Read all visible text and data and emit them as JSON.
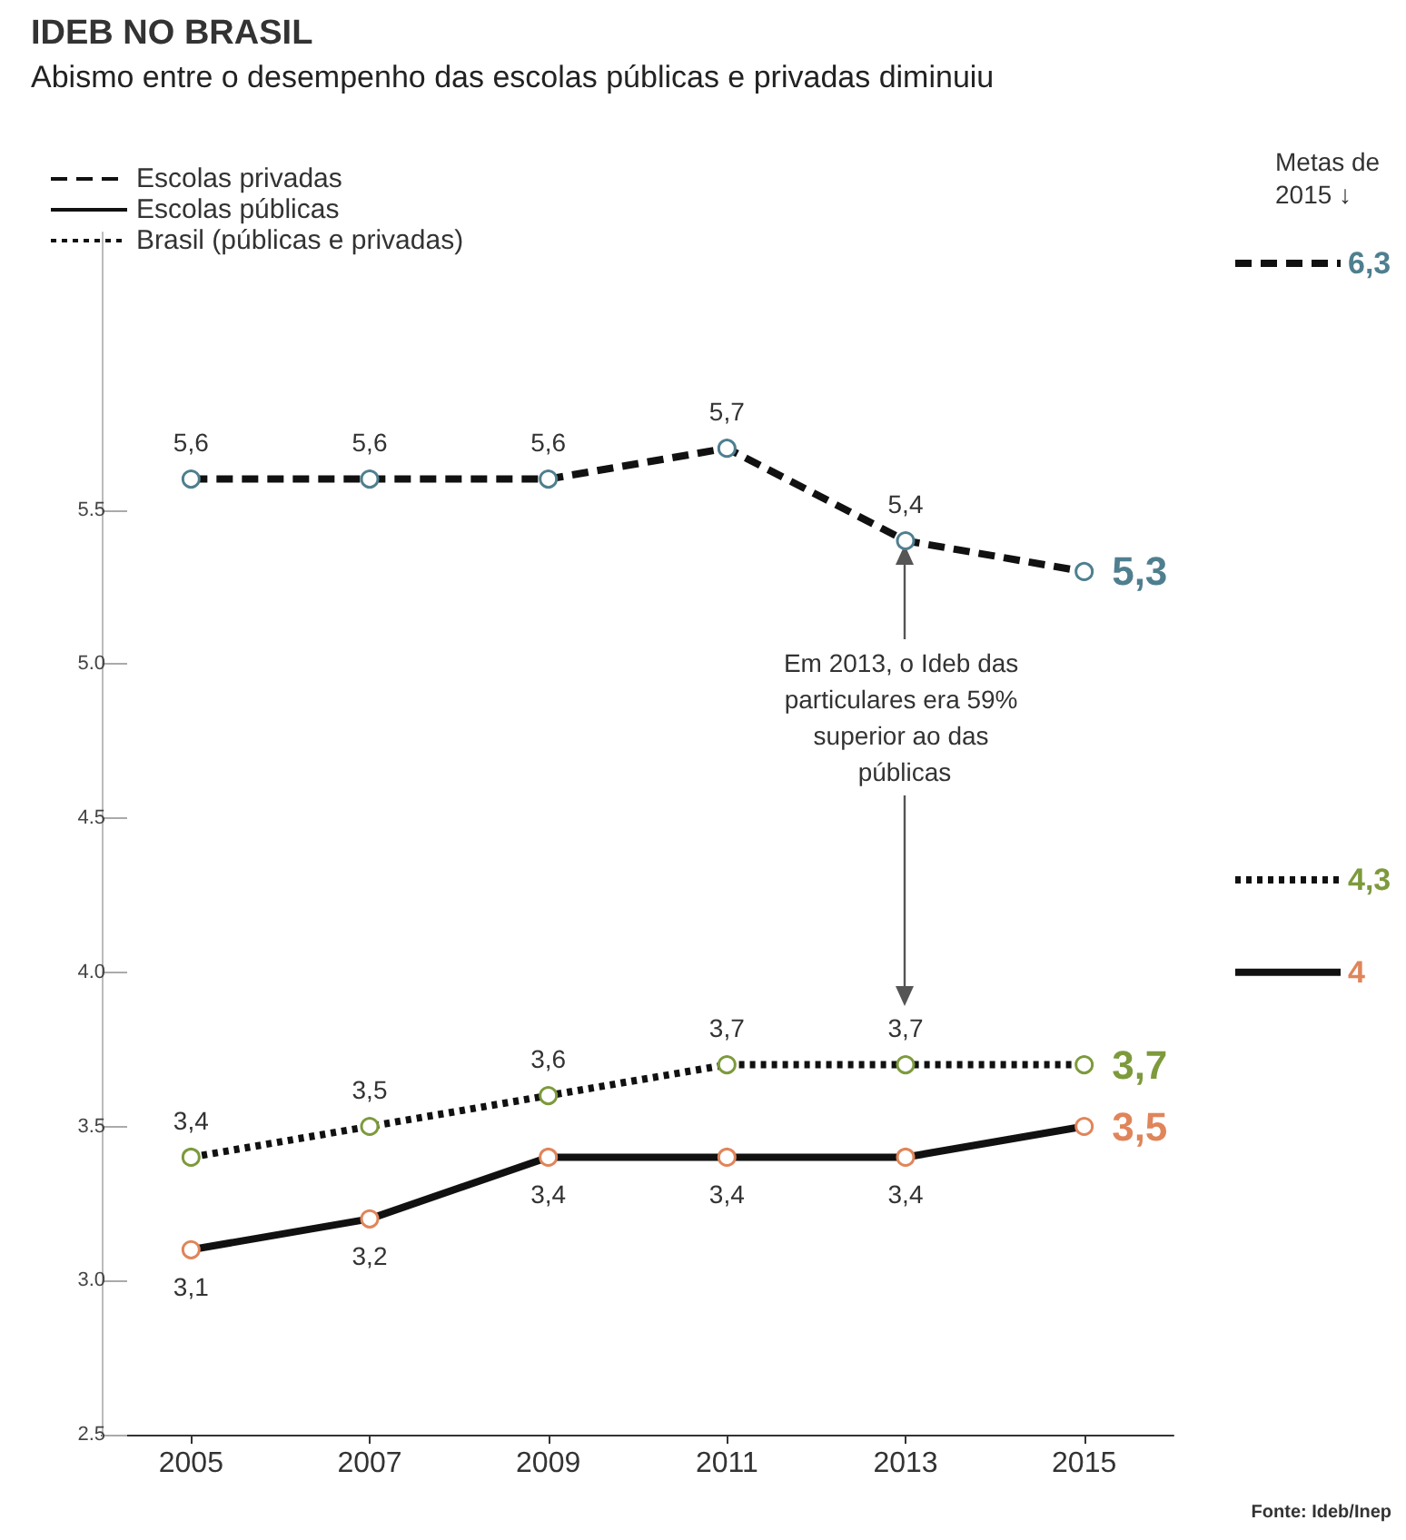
{
  "chart_data": {
    "type": "line",
    "title": "IDEB NO BRASIL",
    "subtitle": "Abismo entre o desempenho das escolas públicas e privadas diminuiu",
    "categories": [
      "2005",
      "2007",
      "2009",
      "2011",
      "2013",
      "2015"
    ],
    "series": [
      {
        "name": "Escolas privadas",
        "color": "#4f7f8f",
        "line_style": "dashed",
        "values": [
          5.6,
          5.6,
          5.6,
          5.7,
          5.4,
          5.3
        ],
        "value_labels": [
          "5,6",
          "5,6",
          "5,6",
          "5,7",
          "5,4",
          "5,3"
        ]
      },
      {
        "name": "Escolas públicas",
        "color": "#e0855a",
        "line_style": "solid",
        "values": [
          3.1,
          3.2,
          3.4,
          3.4,
          3.4,
          3.5
        ],
        "value_labels": [
          "3,1",
          "3,2",
          "3,4",
          "3,4",
          "3,4",
          "3,5"
        ]
      },
      {
        "name": "Brasil (públicas e privadas)",
        "color": "#7d9a3c",
        "line_style": "dotted",
        "values": [
          3.4,
          3.5,
          3.6,
          3.7,
          3.7,
          3.7
        ],
        "value_labels": [
          "3,4",
          "3,5",
          "3,6",
          "3,7",
          "3,7",
          "3,7"
        ]
      }
    ],
    "ylim": [
      2.5,
      6.4
    ],
    "yticks": [
      2.5,
      {
        "value": 3,
        "label": "3.0"
      },
      3.5,
      {
        "value": 4,
        "label": "4.0"
      },
      4.5,
      {
        "value": 5,
        "label": "5.0"
      },
      5.5
    ],
    "ref_lines": [
      {
        "axis": "y",
        "value": 6.3,
        "label": "6,3",
        "line_style": "dashed"
      },
      {
        "axis": "y",
        "value": 4.3,
        "label": "4,3",
        "line_style": "dotted"
      },
      {
        "axis": "y",
        "value": 4,
        "label": "4",
        "line_style": "solid"
      }
    ],
    "annotations": [
      "Metas de 2015 ↓",
      "Em 2013, o Ideb das particulares era 59% superior ao das públicas",
      "Fonte: Ideb/Inep"
    ],
    "marker": "circle",
    "grid": false,
    "legend": "top left"
  }
}
